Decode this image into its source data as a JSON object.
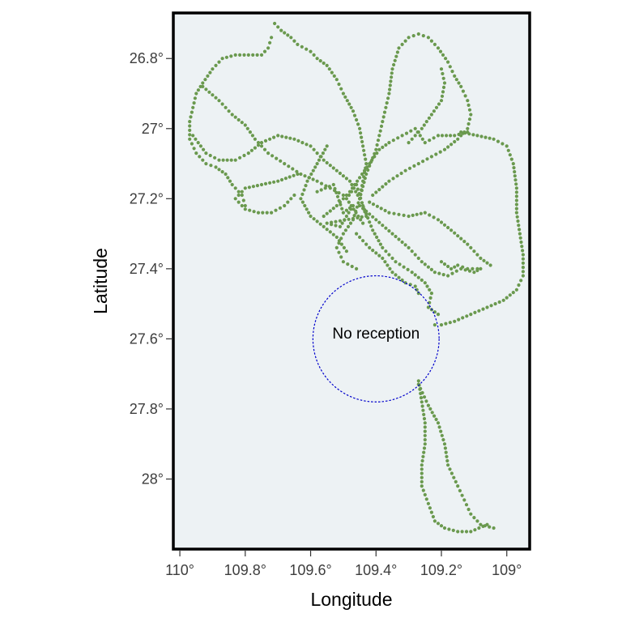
{
  "chart_data": {
    "type": "scatter",
    "title": "",
    "xlabel": "Longitude",
    "ylabel": "Latitude",
    "x_reversed": true,
    "y_reversed": true,
    "xlim": [
      110.02,
      108.93
    ],
    "ylim": [
      26.67,
      28.2
    ],
    "xticks": [
      {
        "value": 110.0,
        "label": "110°"
      },
      {
        "value": 109.8,
        "label": "109.8°"
      },
      {
        "value": 109.6,
        "label": "109.6°"
      },
      {
        "value": 109.4,
        "label": "109.4°"
      },
      {
        "value": 109.2,
        "label": "109.2°"
      },
      {
        "value": 109.0,
        "label": "109°"
      }
    ],
    "yticks": [
      {
        "value": 26.8,
        "label": "26.8°"
      },
      {
        "value": 27.0,
        "label": "27°"
      },
      {
        "value": 27.2,
        "label": "27.2°"
      },
      {
        "value": 27.4,
        "label": "27.4°"
      },
      {
        "value": 27.6,
        "label": "27.6°"
      },
      {
        "value": 27.8,
        "label": "27.8°"
      },
      {
        "value": 28.0,
        "label": "28°"
      }
    ],
    "grid": false,
    "panel_color": "#edf2f4",
    "point_color": "#6a994e",
    "circle_color": "#0000cc",
    "annotation": {
      "text": "No reception",
      "center_lon": 109.4,
      "center_lat": 27.6,
      "radius_deg_lat": 0.18
    },
    "tracks": [
      [
        [
          109.71,
          26.7
        ],
        [
          109.69,
          26.72
        ],
        [
          109.66,
          26.74
        ],
        [
          109.64,
          26.76
        ],
        [
          109.6,
          26.78
        ],
        [
          109.58,
          26.8
        ],
        [
          109.55,
          26.82
        ],
        [
          109.52,
          26.86
        ],
        [
          109.5,
          26.9
        ],
        [
          109.47,
          26.95
        ],
        [
          109.45,
          27.0
        ],
        [
          109.44,
          27.05
        ],
        [
          109.43,
          27.1
        ],
        [
          109.44,
          27.15
        ],
        [
          109.45,
          27.2
        ]
      ],
      [
        [
          109.72,
          26.74
        ],
        [
          109.73,
          26.77
        ],
        [
          109.75,
          26.79
        ],
        [
          109.79,
          26.79
        ],
        [
          109.83,
          26.79
        ],
        [
          109.87,
          26.8
        ],
        [
          109.9,
          26.83
        ],
        [
          109.93,
          26.87
        ],
        [
          109.95,
          26.9
        ],
        [
          109.96,
          26.94
        ],
        [
          109.97,
          26.98
        ],
        [
          109.97,
          27.03
        ],
        [
          109.95,
          27.07
        ],
        [
          109.92,
          27.1
        ],
        [
          109.89,
          27.11
        ],
        [
          109.86,
          27.13
        ],
        [
          109.84,
          27.16
        ],
        [
          109.81,
          27.19
        ],
        [
          109.8,
          27.22
        ]
      ],
      [
        [
          109.45,
          27.2
        ],
        [
          109.48,
          27.15
        ],
        [
          109.52,
          27.12
        ],
        [
          109.56,
          27.09
        ],
        [
          109.6,
          27.05
        ],
        [
          109.65,
          27.03
        ],
        [
          109.7,
          27.02
        ],
        [
          109.75,
          27.04
        ],
        [
          109.79,
          27.07
        ],
        [
          109.83,
          27.09
        ],
        [
          109.88,
          27.09
        ],
        [
          109.92,
          27.07
        ],
        [
          109.96,
          27.02
        ]
      ],
      [
        [
          109.93,
          26.88
        ],
        [
          109.88,
          26.92
        ],
        [
          109.84,
          26.96
        ],
        [
          109.8,
          26.99
        ],
        [
          109.77,
          27.03
        ],
        [
          109.73,
          27.07
        ],
        [
          109.68,
          27.1
        ],
        [
          109.63,
          27.13
        ],
        [
          109.58,
          27.15
        ],
        [
          109.54,
          27.17
        ],
        [
          109.5,
          27.19
        ]
      ],
      [
        [
          109.45,
          27.2
        ],
        [
          109.43,
          27.13
        ],
        [
          109.4,
          27.06
        ],
        [
          109.38,
          26.98
        ],
        [
          109.36,
          26.9
        ],
        [
          109.35,
          26.83
        ],
        [
          109.33,
          26.77
        ],
        [
          109.3,
          26.74
        ],
        [
          109.27,
          26.73
        ],
        [
          109.24,
          26.74
        ],
        [
          109.21,
          26.77
        ],
        [
          109.18,
          26.81
        ],
        [
          109.16,
          26.85
        ],
        [
          109.14,
          26.88
        ],
        [
          109.12,
          26.92
        ],
        [
          109.11,
          26.96
        ],
        [
          109.12,
          27.0
        ],
        [
          109.15,
          27.03
        ],
        [
          109.19,
          27.06
        ],
        [
          109.23,
          27.08
        ],
        [
          109.27,
          27.1
        ],
        [
          109.31,
          27.12
        ],
        [
          109.36,
          27.15
        ],
        [
          109.41,
          27.19
        ]
      ],
      [
        [
          109.3,
          27.04
        ],
        [
          109.26,
          27.0
        ],
        [
          109.23,
          26.96
        ],
        [
          109.2,
          26.92
        ],
        [
          109.19,
          26.87
        ],
        [
          109.2,
          26.83
        ]
      ],
      [
        [
          109.45,
          27.22
        ],
        [
          109.4,
          27.26
        ],
        [
          109.35,
          27.3
        ],
        [
          109.3,
          27.34
        ],
        [
          109.26,
          27.38
        ],
        [
          109.22,
          27.41
        ],
        [
          109.18,
          27.42
        ],
        [
          109.14,
          27.4
        ],
        [
          109.1,
          27.41
        ],
        [
          109.08,
          27.4
        ]
      ],
      [
        [
          109.42,
          27.21
        ],
        [
          109.36,
          27.24
        ],
        [
          109.3,
          27.25
        ],
        [
          109.25,
          27.24
        ],
        [
          109.21,
          27.26
        ],
        [
          109.17,
          27.29
        ],
        [
          109.12,
          27.33
        ],
        [
          109.08,
          27.37
        ],
        [
          109.05,
          27.39
        ]
      ],
      [
        [
          109.45,
          27.2
        ],
        [
          109.47,
          27.26
        ],
        [
          109.5,
          27.3
        ],
        [
          109.52,
          27.34
        ],
        [
          109.5,
          27.38
        ],
        [
          109.46,
          27.4
        ]
      ],
      [
        [
          109.44,
          27.22
        ],
        [
          109.41,
          27.29
        ],
        [
          109.38,
          27.34
        ],
        [
          109.34,
          27.38
        ],
        [
          109.29,
          27.41
        ],
        [
          109.25,
          27.44
        ],
        [
          109.23,
          27.47
        ],
        [
          109.24,
          27.51
        ],
        [
          109.21,
          27.53
        ]
      ],
      [
        [
          109.55,
          27.05
        ],
        [
          109.58,
          27.1
        ],
        [
          109.61,
          27.15
        ],
        [
          109.63,
          27.2
        ],
        [
          109.6,
          27.25
        ],
        [
          109.56,
          27.28
        ],
        [
          109.52,
          27.31
        ],
        [
          109.49,
          27.35
        ]
      ],
      [
        [
          109.64,
          27.13
        ],
        [
          109.7,
          27.15
        ],
        [
          109.75,
          27.16
        ],
        [
          109.8,
          27.17
        ],
        [
          109.83,
          27.2
        ],
        [
          109.8,
          27.23
        ],
        [
          109.76,
          27.24
        ],
        [
          109.72,
          27.24
        ],
        [
          109.68,
          27.22
        ],
        [
          109.65,
          27.19
        ]
      ],
      [
        [
          109.56,
          27.25
        ],
        [
          109.52,
          27.22
        ],
        [
          109.48,
          27.18
        ],
        [
          109.45,
          27.14
        ],
        [
          109.42,
          27.1
        ],
        [
          109.39,
          27.06
        ],
        [
          109.36,
          27.04
        ],
        [
          109.32,
          27.02
        ],
        [
          109.28,
          27.0
        ],
        [
          109.25,
          27.04
        ],
        [
          109.21,
          27.02
        ],
        [
          109.16,
          27.02
        ],
        [
          109.12,
          27.01
        ]
      ],
      [
        [
          109.46,
          27.3
        ],
        [
          109.42,
          27.34
        ],
        [
          109.38,
          27.37
        ],
        [
          109.35,
          27.41
        ],
        [
          109.31,
          27.44
        ],
        [
          109.28,
          27.45
        ],
        [
          109.27,
          27.47
        ]
      ],
      [
        [
          109.14,
          27.01
        ],
        [
          109.09,
          27.02
        ],
        [
          109.04,
          27.03
        ],
        [
          109.0,
          27.05
        ],
        [
          108.98,
          27.1
        ],
        [
          108.97,
          27.17
        ],
        [
          108.97,
          27.24
        ],
        [
          108.96,
          27.3
        ],
        [
          108.95,
          27.36
        ],
        [
          108.95,
          27.42
        ],
        [
          108.97,
          27.46
        ],
        [
          109.01,
          27.49
        ],
        [
          109.06,
          27.51
        ],
        [
          109.11,
          27.53
        ],
        [
          109.16,
          27.55
        ],
        [
          109.2,
          27.56
        ],
        [
          109.22,
          27.56
        ]
      ],
      [
        [
          109.2,
          27.38
        ],
        [
          109.17,
          27.4
        ],
        [
          109.15,
          27.39
        ],
        [
          109.12,
          27.4
        ],
        [
          109.09,
          27.4
        ]
      ],
      [
        [
          109.27,
          27.72
        ],
        [
          109.26,
          27.78
        ],
        [
          109.25,
          27.84
        ],
        [
          109.25,
          27.9
        ],
        [
          109.26,
          27.96
        ],
        [
          109.26,
          28.02
        ],
        [
          109.24,
          28.07
        ],
        [
          109.22,
          28.12
        ],
        [
          109.19,
          28.14
        ],
        [
          109.15,
          28.15
        ],
        [
          109.11,
          28.15
        ],
        [
          109.06,
          28.13
        ]
      ],
      [
        [
          109.27,
          27.73
        ],
        [
          109.24,
          27.79
        ],
        [
          109.21,
          27.84
        ],
        [
          109.19,
          27.9
        ],
        [
          109.18,
          27.96
        ],
        [
          109.15,
          28.02
        ],
        [
          109.13,
          28.06
        ],
        [
          109.11,
          28.1
        ],
        [
          109.08,
          28.13
        ],
        [
          109.04,
          28.14
        ]
      ],
      [
        [
          109.58,
          27.18
        ],
        [
          109.53,
          27.16
        ],
        [
          109.5,
          27.24
        ],
        [
          109.47,
          27.22
        ],
        [
          109.51,
          27.28
        ],
        [
          109.55,
          27.27
        ],
        [
          109.43,
          27.25
        ],
        [
          109.46,
          27.16
        ],
        [
          109.49,
          27.2
        ],
        [
          109.44,
          27.27
        ]
      ]
    ]
  }
}
